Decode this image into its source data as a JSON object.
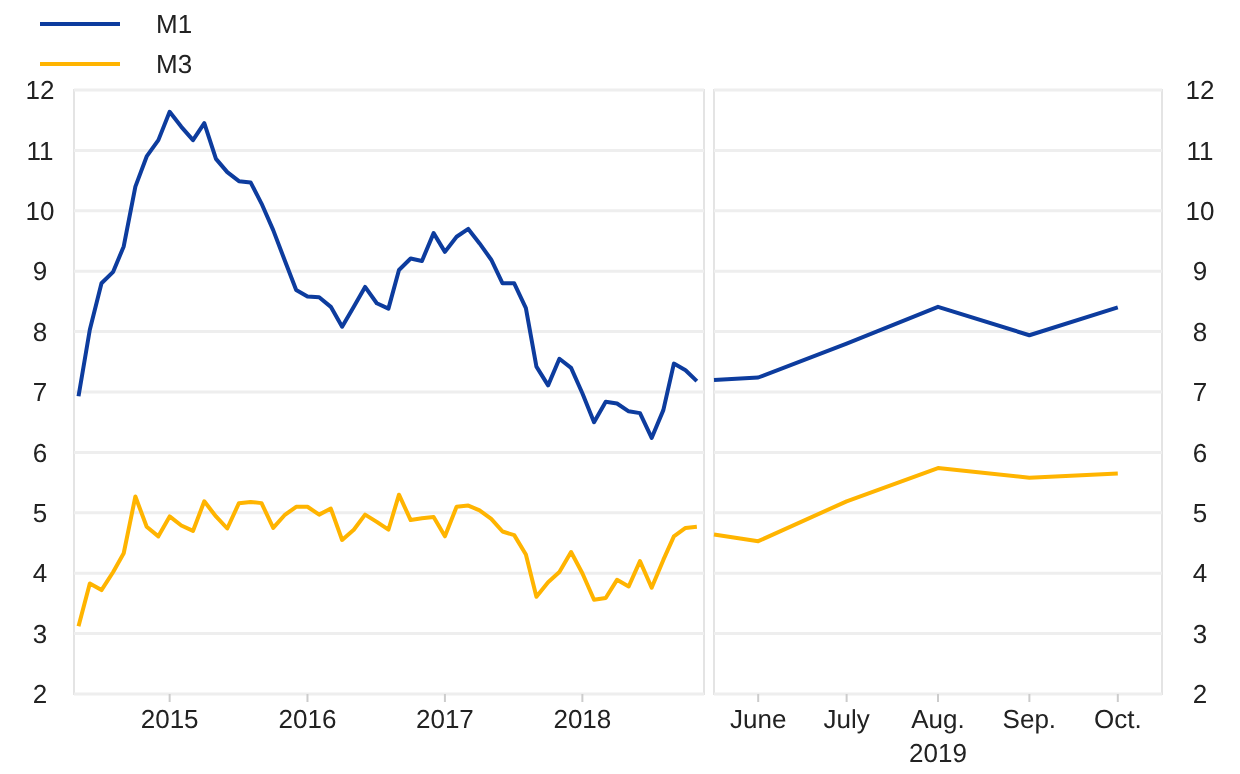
{
  "chart_data": [
    {
      "type": "line",
      "legend": "top left",
      "grid": "y",
      "line_style": "solid",
      "marker": "none",
      "x": [
        "2014-11",
        "2014-12",
        "2015-01",
        "2015-02",
        "2015-03",
        "2015-04",
        "2015-05",
        "2015-06",
        "2015-07",
        "2015-08",
        "2015-09",
        "2015-10",
        "2015-11",
        "2015-12",
        "2016-01",
        "2016-02",
        "2016-03",
        "2016-04",
        "2016-05",
        "2016-06",
        "2016-07",
        "2016-08",
        "2016-09",
        "2016-10",
        "2016-11",
        "2016-12",
        "2017-01",
        "2017-02",
        "2017-03",
        "2017-04",
        "2017-05",
        "2017-06",
        "2017-07",
        "2017-08",
        "2017-09",
        "2017-10",
        "2017-11",
        "2017-12",
        "2018-01",
        "2018-02",
        "2018-03",
        "2018-04",
        "2018-05",
        "2018-06",
        "2018-07",
        "2018-08",
        "2018-09",
        "2018-10",
        "2018-11",
        "2018-12",
        "2019-01",
        "2019-02",
        "2019-03",
        "2019-04",
        "2019-05"
      ],
      "xlim": [
        "2014-10-20",
        "2019-05-20"
      ],
      "xticks": [
        {
          "value": "2015-07-01",
          "label": "2015"
        },
        {
          "value": "2016-07-01",
          "label": "2016"
        },
        {
          "value": "2017-07-01",
          "label": "2017"
        },
        {
          "value": "2018-07-01",
          "label": "2018"
        }
      ],
      "ylim": [
        2,
        12
      ],
      "yticks": [
        2,
        3,
        4,
        5,
        6,
        7,
        8,
        9,
        10,
        11,
        12
      ],
      "series": [
        {
          "name": "M1",
          "color": "#0d3c9e",
          "values": [
            6.93,
            8.03,
            8.8,
            8.99,
            9.41,
            10.4,
            10.9,
            11.17,
            11.64,
            11.39,
            11.17,
            11.45,
            10.86,
            10.64,
            10.49,
            10.47,
            10.12,
            9.68,
            9.19,
            8.69,
            8.58,
            8.57,
            8.41,
            8.08,
            8.41,
            8.74,
            8.47,
            8.38,
            9.02,
            9.21,
            9.17,
            9.63,
            9.32,
            9.57,
            9.7,
            9.46,
            9.19,
            8.8,
            8.8,
            8.39,
            7.42,
            7.11,
            7.55,
            7.4,
            6.98,
            6.5,
            6.84,
            6.81,
            6.68,
            6.65,
            6.24,
            6.7,
            7.47,
            7.36,
            7.18
          ]
        },
        {
          "name": "M3",
          "color": "#ffb400",
          "values": [
            3.12,
            3.83,
            3.72,
            4.02,
            4.33,
            5.27,
            4.77,
            4.61,
            4.94,
            4.79,
            4.7,
            5.19,
            4.94,
            4.74,
            5.16,
            5.18,
            5.16,
            4.75,
            4.96,
            5.1,
            5.1,
            4.97,
            5.07,
            4.55,
            4.72,
            4.97,
            4.85,
            4.72,
            5.3,
            4.88,
            4.91,
            4.93,
            4.61,
            5.1,
            5.12,
            5.04,
            4.9,
            4.69,
            4.63,
            4.31,
            3.61,
            3.85,
            4.02,
            4.35,
            4.0,
            3.56,
            3.59,
            3.89,
            3.78,
            4.2,
            3.76,
            4.22,
            4.61,
            4.75,
            4.77
          ]
        }
      ]
    },
    {
      "type": "line",
      "grid": "y",
      "line_style": "solid",
      "marker": "none",
      "xlabel": "2019",
      "x": [
        "2019-05-17",
        "2019-06-01",
        "2019-07-01",
        "2019-08-01",
        "2019-09-01",
        "2019-10-01"
      ],
      "xlim": [
        "2019-05-17",
        "2019-10-16"
      ],
      "xticks": [
        {
          "value": "2019-06-01",
          "label": "June"
        },
        {
          "value": "2019-07-01",
          "label": "July"
        },
        {
          "value": "2019-08-01",
          "label": "Aug."
        },
        {
          "value": "2019-09-01",
          "label": "Sep."
        },
        {
          "value": "2019-10-01",
          "label": "Oct."
        }
      ],
      "ylim": [
        2,
        12
      ],
      "yticks": [
        2,
        3,
        4,
        5,
        6,
        7,
        8,
        9,
        10,
        11,
        12
      ],
      "series": [
        {
          "color": "#0d3c9e",
          "values": [
            7.2,
            7.24,
            7.8,
            8.41,
            7.94,
            8.4
          ]
        },
        {
          "color": "#ffb400",
          "values": [
            4.64,
            4.53,
            5.19,
            5.74,
            5.58,
            5.65
          ]
        }
      ]
    }
  ]
}
